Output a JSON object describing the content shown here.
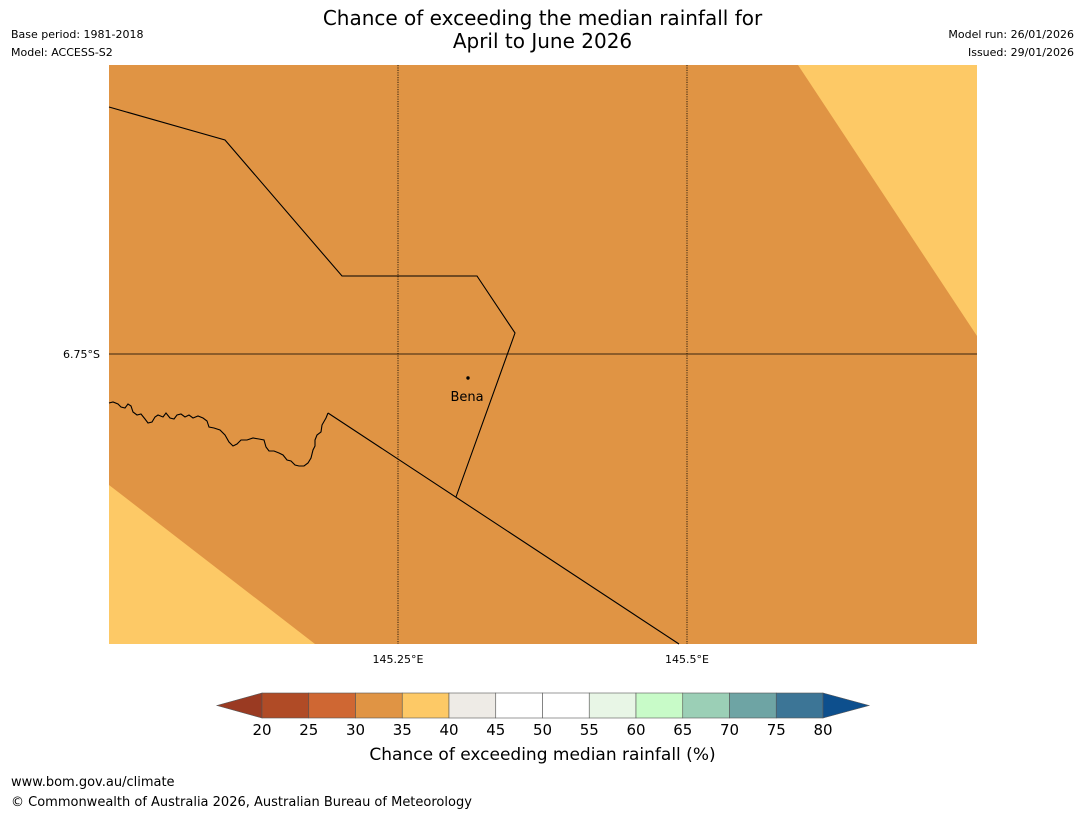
{
  "header": {
    "title_line1": "Chance of exceeding the median rainfall for",
    "title_line2": "April to June 2026",
    "base_period": "Base period: 1981-2018",
    "model": "Model: ACCESS-S2",
    "model_run": "Model run: 26/01/2026",
    "issued": "Issued: 29/01/2026"
  },
  "map": {
    "lat_label": "6.75°S",
    "lon_labels": [
      "145.25°E",
      "145.5°E"
    ],
    "place": "Bena",
    "colors": {
      "main_fill": "#e09444",
      "light_fill": "#fdc966",
      "border": "#000000",
      "gridline": "#000000"
    }
  },
  "colorbar": {
    "title": "Chance of exceeding median rainfall (%)",
    "ticks": [
      "20",
      "25",
      "30",
      "35",
      "40",
      "45",
      "50",
      "55",
      "60",
      "65",
      "70",
      "75",
      "80"
    ],
    "under_color": "#9a3a22",
    "over_color": "#0d4f8d",
    "colors": [
      "#b04b26",
      "#cf6733",
      "#e09444",
      "#fdc966",
      "#eeebe6",
      "#ffffff",
      "#ffffff",
      "#e8f6e6",
      "#c8fbc8",
      "#9bcfb6",
      "#6ea4a4",
      "#3c7596"
    ]
  },
  "footer": {
    "url": "www.bom.gov.au/climate",
    "copyright": "© Commonwealth of Australia 2026, Australian Bureau of Meteorology"
  }
}
